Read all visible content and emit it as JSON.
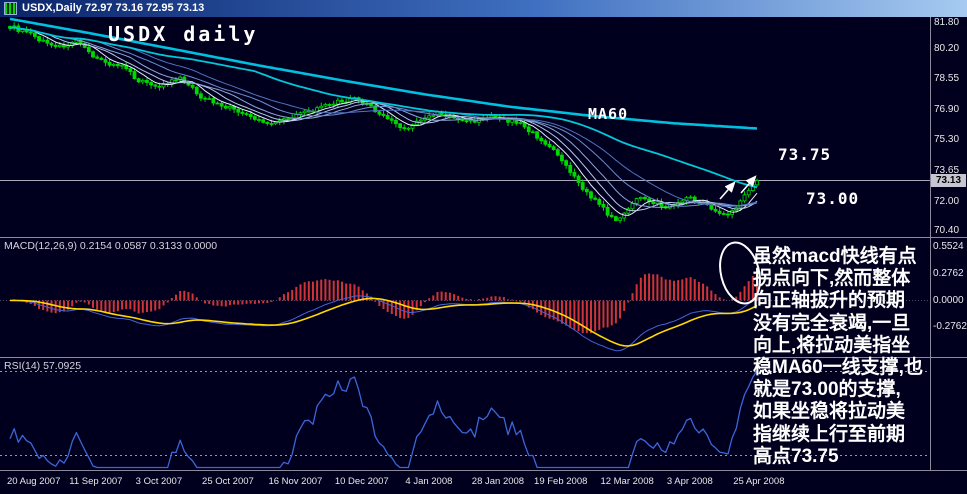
{
  "window": {
    "title": "USDX,Daily 72.97 73.16 72.95 73.13"
  },
  "main_chart": {
    "watermark": "USDX daily",
    "ma_label": "MA60",
    "resistance_label": "73.75",
    "support_label": "73.00",
    "current_price": "73.13"
  },
  "macd_panel": {
    "label": "MACD(12,26,9) 0.2154 0.0587 0.3133 0.0000"
  },
  "rsi_panel": {
    "label": "RSI(14) 57.0925"
  },
  "annotation": {
    "text": "虽然macd快线有点\n拐点向下,然而整体\n向正轴拔升的预期\n没有完全衰竭,一旦\n向上,将拉动美指坐\n稳MA60一线支撑,也\n就是73.00的支撑,\n如果坐稳将拉动美\n指继续上行至前期\n高点73.75"
  },
  "colors": {
    "background": "#00001e",
    "titlebar_left": "#0a246a",
    "titlebar_right": "#a6caf0",
    "candle": "#00d800",
    "candle_fill_up": "#00001e",
    "ribbon": [
      "#e8eef8",
      "#b9c9e8",
      "#8fa9da",
      "#6b8cce",
      "#4f74c0"
    ],
    "ma60": "#00c8d8",
    "long_ma": "#00c0e0",
    "price_line": "#a8a8b8",
    "price_tag_bg": "#c6c6d2",
    "macd_histogram": "#d03434",
    "macd_signal": "#ffd800",
    "macd_line": "#4464d8",
    "macd_zero": "#50506e",
    "rsi_line": "#3b66d9",
    "level_dotted": "#9595ad",
    "separator": "#8a8a9a",
    "axis_text": "#e8e8e8",
    "annotation_text": "#ffffff",
    "drawing": "#ffffff"
  },
  "chart_data": {
    "type": "candlestick",
    "symbol": "USDX",
    "timeframe": "Daily",
    "title": "USDX daily",
    "ohlc_current": {
      "open": 72.97,
      "high": 73.16,
      "low": 72.95,
      "close": 73.13
    },
    "price_ylim": [
      70.1,
      81.9
    ],
    "price_axis_ticks": [
      81.8,
      80.2,
      78.55,
      76.9,
      75.3,
      73.65,
      72.0,
      70.4
    ],
    "candle_count": 181,
    "price_anchors": [
      [
        0,
        81.4
      ],
      [
        4,
        81.05
      ],
      [
        8,
        80.6
      ],
      [
        12,
        80.3
      ],
      [
        16,
        80.55
      ],
      [
        19,
        80.0
      ],
      [
        23,
        79.45
      ],
      [
        27,
        79.25
      ],
      [
        31,
        78.5
      ],
      [
        36,
        78.2
      ],
      [
        41,
        78.6
      ],
      [
        46,
        77.65
      ],
      [
        50,
        77.25
      ],
      [
        54,
        76.95
      ],
      [
        58,
        76.5
      ],
      [
        62,
        76.2
      ],
      [
        65,
        76.35
      ],
      [
        69,
        76.65
      ],
      [
        74,
        76.95
      ],
      [
        79,
        77.35
      ],
      [
        83,
        77.5
      ],
      [
        87,
        77.05
      ],
      [
        91,
        76.45
      ],
      [
        95,
        75.9
      ],
      [
        99,
        76.35
      ],
      [
        103,
        76.75
      ],
      [
        107,
        76.45
      ],
      [
        111,
        76.3
      ],
      [
        115,
        76.55
      ],
      [
        119,
        76.4
      ],
      [
        123,
        76.2
      ],
      [
        126,
        75.65
      ],
      [
        129,
        75.15
      ],
      [
        132,
        74.45
      ],
      [
        134,
        73.85
      ],
      [
        137,
        73.0
      ],
      [
        140,
        72.25
      ],
      [
        143,
        71.6
      ],
      [
        146,
        70.9
      ],
      [
        148,
        71.45
      ],
      [
        150,
        71.9
      ],
      [
        152,
        72.3
      ],
      [
        155,
        72.0
      ],
      [
        158,
        71.7
      ],
      [
        161,
        71.95
      ],
      [
        164,
        72.25
      ],
      [
        167,
        71.9
      ],
      [
        170,
        71.55
      ],
      [
        173,
        71.25
      ],
      [
        175,
        71.7
      ],
      [
        177,
        72.3
      ],
      [
        179,
        72.9
      ],
      [
        180,
        73.13
      ]
    ],
    "long_ma_anchors": [
      [
        0,
        81.8
      ],
      [
        20,
        81.0
      ],
      [
        40,
        80.15
      ],
      [
        60,
        79.3
      ],
      [
        80,
        78.5
      ],
      [
        100,
        77.75
      ],
      [
        120,
        77.1
      ],
      [
        140,
        76.6
      ],
      [
        160,
        76.2
      ],
      [
        180,
        75.92
      ]
    ],
    "indicators": {
      "ma60_period": 60,
      "ribbon_periods": [
        6,
        10,
        15,
        22,
        30
      ],
      "macd": {
        "params": "12,26,9",
        "current_values": [
          0.2154,
          0.0587,
          0.3133,
          0.0
        ],
        "axis_ticks": [
          0.5524,
          0.2762,
          0.0,
          -0.2762
        ]
      },
      "rsi": {
        "period": 14,
        "current": 57.0925,
        "levels": [
          70,
          30
        ]
      }
    },
    "levels": {
      "resistance": 73.75,
      "support": 73.0
    },
    "date_axis": [
      {
        "label": "20 Aug 2007",
        "day": 0
      },
      {
        "label": "11 Sep 2007",
        "day": 15
      },
      {
        "label": "3 Oct 2007",
        "day": 31
      },
      {
        "label": "25 Oct 2007",
        "day": 47
      },
      {
        "label": "16 Nov 2007",
        "day": 63
      },
      {
        "label": "10 Dec 2007",
        "day": 79
      },
      {
        "label": "4 Jan 2008",
        "day": 96
      },
      {
        "label": "28 Jan 2008",
        "day": 112
      },
      {
        "label": "19 Feb 2008",
        "day": 127
      },
      {
        "label": "12 Mar 2008",
        "day": 143
      },
      {
        "label": "3 Apr 2008",
        "day": 159
      },
      {
        "label": "25 Apr 2008",
        "day": 175
      }
    ]
  }
}
